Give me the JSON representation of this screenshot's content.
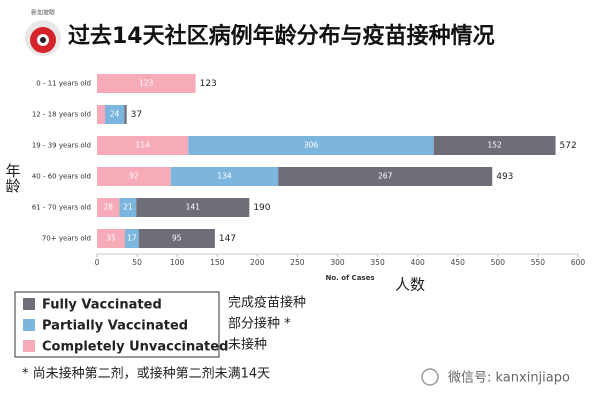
{
  "logo_text": "新加坡眼",
  "watermark": "微信号: kanxinjiapo",
  "chart_data": {
    "type": "stacked-bar-horizontal",
    "title": "过去14天社区病例年龄分布与疫苗接种情况",
    "ylabel": "年龄",
    "xlabel": "No. of Cases",
    "xlabel_zh": "人数",
    "footnote": "* 尚未接种第二剂，或接种第二剂未满14天",
    "categories": [
      "0 - 11 years old",
      "12 - 18 years old",
      "19 - 39 years old",
      "40 - 60 years old",
      "61 - 70 years old",
      "70+ years old"
    ],
    "series": [
      {
        "name": "Completely Unvaccinated",
        "color": "#f7aab8",
        "values": [
          123,
          10,
          114,
          92,
          28,
          35
        ]
      },
      {
        "name": "Partially Vaccinated",
        "color": "#7cb5dd",
        "values": [
          0,
          24,
          306,
          134,
          21,
          17
        ]
      },
      {
        "name": "Fully Vaccinated",
        "color": "#6d6e78",
        "values": [
          0,
          3,
          152,
          267,
          141,
          95
        ]
      }
    ],
    "totals": [
      123,
      37,
      572,
      493,
      190,
      147
    ],
    "legend_order": [
      2,
      1,
      0
    ],
    "legend_zh": [
      "未接种",
      "部分接种 *",
      "完成疫苗接种"
    ],
    "xlim": [
      0,
      600
    ],
    "xticks": [
      0,
      50,
      100,
      150,
      200,
      250,
      300,
      350,
      400,
      450,
      500,
      550,
      600
    ]
  }
}
